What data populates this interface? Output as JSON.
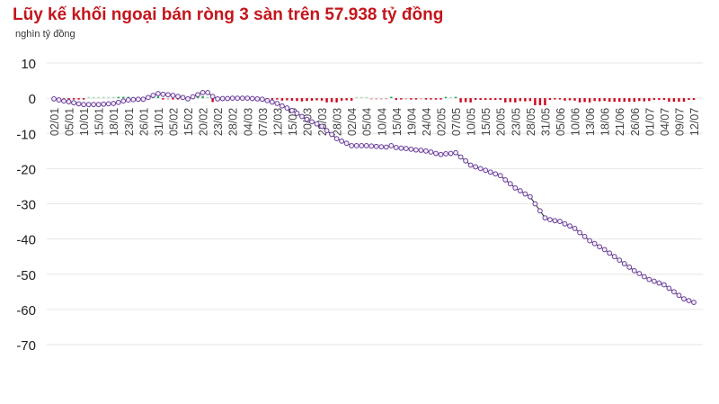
{
  "chart_data": {
    "type": "line",
    "title": "Lũy kế khối ngoại bán ròng 3 sàn trên 57.938 tỷ đồng",
    "ylabel": "nghìn tỷ đồng",
    "ylim": [
      -70,
      10
    ],
    "yticks": [
      10,
      0,
      -10,
      -20,
      -30,
      -40,
      -50,
      -60,
      -70
    ],
    "grid": true,
    "xtick_labels": [
      "02/01",
      "05/01",
      "10/01",
      "15/01",
      "18/01",
      "23/01",
      "26/01",
      "31/01",
      "05/02",
      "15/02",
      "20/02",
      "23/02",
      "28/02",
      "04/03",
      "07/03",
      "12/03",
      "15/03",
      "20/03",
      "23/03",
      "28/03",
      "02/04",
      "05/04",
      "10/04",
      "15/04",
      "19/04",
      "24/04",
      "02/05",
      "07/05",
      "10/05",
      "15/05",
      "20/05",
      "23/05",
      "28/05",
      "31/05",
      "05/06",
      "10/06",
      "13/06",
      "18/06",
      "21/06",
      "26/06",
      "01/07",
      "04/07",
      "09/07",
      "12/07"
    ],
    "series": [
      {
        "kind": "cumulative-line",
        "values": [
          -0.2,
          -0.5,
          -0.8,
          -1,
          -1.3,
          -1.6,
          -1.8,
          -1.8,
          -1.8,
          -1.8,
          -1.7,
          -1.6,
          -1.5,
          -1.2,
          -0.8,
          -0.5,
          -0.4,
          -0.3,
          -0.3,
          0.2,
          0.8,
          1.3,
          1.1,
          1.0,
          0.8,
          0.5,
          0.2,
          -0.2,
          0.4,
          1.0,
          1.6,
          1.6,
          0.5,
          -0.2,
          -0.1,
          -0.1,
          0,
          0,
          0,
          0,
          -0.1,
          -0.2,
          -0.3,
          -0.7,
          -1.1,
          -1.5,
          -2.2,
          -2.8,
          -3.5,
          -4.3,
          -5.2,
          -6,
          -6.7,
          -7.3,
          -8,
          -9.2,
          -10.3,
          -11.5,
          -12.2,
          -12.8,
          -13.5,
          -13.5,
          -13.5,
          -13.5,
          -13.6,
          -13.7,
          -13.8,
          -13.9,
          -13.5,
          -14,
          -14.2,
          -14.3,
          -14.5,
          -14.7,
          -14.8,
          -15,
          -15.3,
          -15.7,
          -16,
          -15.8,
          -15.7,
          -15.5,
          -16.7,
          -17.8,
          -19,
          -19.5,
          -20,
          -20.5,
          -21,
          -21.5,
          -22,
          -23.2,
          -24.3,
          -25.5,
          -26.3,
          -27.2,
          -28,
          -30,
          -32,
          -34,
          -34.5,
          -34.8,
          -35,
          -35.7,
          -36.3,
          -37,
          -38.2,
          -39.3,
          -40.5,
          -41.3,
          -42.2,
          -43,
          -44,
          -45,
          -46,
          -47,
          -48,
          -49,
          -49.8,
          -50.7,
          -51.5,
          -52,
          -52.5,
          -53,
          -54,
          -55,
          -56,
          -57,
          -57.5,
          -58
        ]
      }
    ],
    "colors": {
      "title": "#c4161c",
      "line": "#222222",
      "marker": "#6a3d9a",
      "buy": "#1fa84f",
      "sell": "#d0021b",
      "grid": "#e6e6e6"
    }
  }
}
